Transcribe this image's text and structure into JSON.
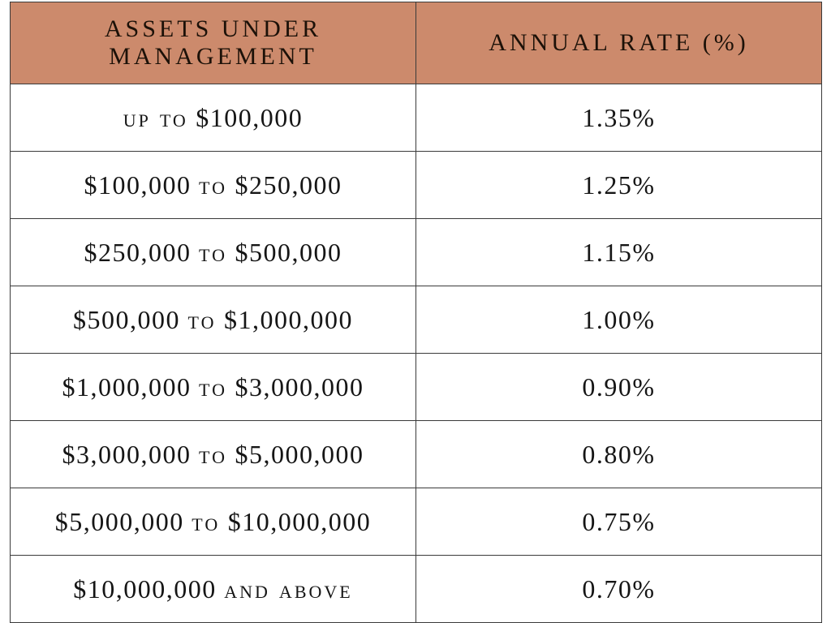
{
  "table": {
    "headers": [
      "Assets under management",
      "Annual rate (%)"
    ],
    "rows": [
      {
        "range_start": "",
        "connector": "up to",
        "range_end": "$100,000",
        "rate": "1.35%"
      },
      {
        "range_start": "$100,000",
        "connector": "to",
        "range_end": "$250,000",
        "rate": "1.25%"
      },
      {
        "range_start": "$250,000",
        "connector": "to",
        "range_end": "$500,000",
        "rate": "1.15%"
      },
      {
        "range_start": "$500,000",
        "connector": "to",
        "range_end": "$1,000,000",
        "rate": "1.00%"
      },
      {
        "range_start": "$1,000,000",
        "connector": "to",
        "range_end": "$3,000,000",
        "rate": "0.90%"
      },
      {
        "range_start": "$3,000,000",
        "connector": "to",
        "range_end": "$5,000,000",
        "rate": "0.80%"
      },
      {
        "range_start": "$5,000,000",
        "connector": "to",
        "range_end": "$10,000,000",
        "rate": "0.75%"
      },
      {
        "range_start": "$10,000,000",
        "connector": "and above",
        "range_end": "",
        "rate": "0.70%"
      }
    ]
  },
  "colors": {
    "header_background": "#cc8a6c",
    "border": "#3a3a3a",
    "cell_background": "#ffffff"
  }
}
